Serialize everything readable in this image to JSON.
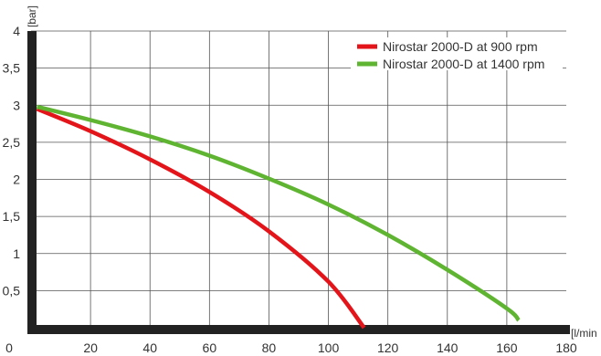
{
  "chart_data": {
    "type": "line",
    "xlabel": "[l/min",
    "ylabel": "[bar]",
    "xlim": [
      0,
      180
    ],
    "ylim": [
      0,
      4
    ],
    "x_ticks": [
      "20",
      "40",
      "60",
      "80",
      "100",
      "120",
      "140",
      "160",
      "180"
    ],
    "y_ticks": [
      "0,5",
      "1",
      "1,5",
      "2",
      "2,5",
      "3",
      "3,5",
      "4"
    ],
    "x_origin_label": "0",
    "grid": true,
    "legend_position": "top-right",
    "series": [
      {
        "name": "Nirostar 2000-D at 900 rpm",
        "color": "#e3151a",
        "points": [
          [
            2,
            2.95
          ],
          [
            20,
            2.65
          ],
          [
            40,
            2.27
          ],
          [
            60,
            1.83
          ],
          [
            80,
            1.3
          ],
          [
            100,
            0.62
          ],
          [
            112,
            0.0
          ]
        ]
      },
      {
        "name": "Nirostar 2000-D at 1400 rpm",
        "color": "#5fb431",
        "points": [
          [
            2,
            2.98
          ],
          [
            20,
            2.8
          ],
          [
            40,
            2.58
          ],
          [
            60,
            2.32
          ],
          [
            80,
            2.01
          ],
          [
            100,
            1.66
          ],
          [
            120,
            1.25
          ],
          [
            140,
            0.78
          ],
          [
            160,
            0.26
          ],
          [
            164,
            0.1
          ]
        ]
      }
    ]
  }
}
